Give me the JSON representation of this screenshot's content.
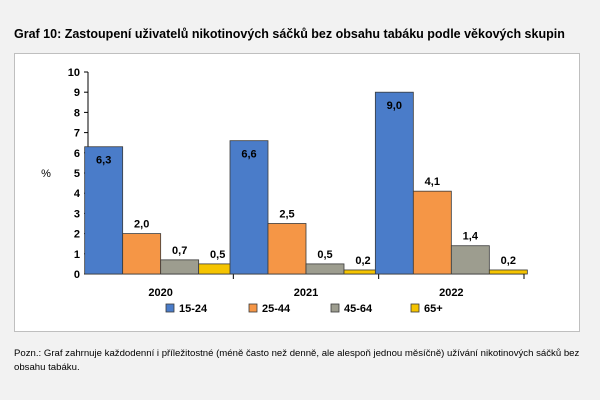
{
  "title": "Graf 10: Zastoupení uživatelů nikotinových sáčků bez obsahu tabáku podle věkových skupin",
  "note": "Pozn.: Graf zahrnuje každodenní i příležitostné (méně často než denně, ale alespoň jednou měsíčně) užívání nikotinových sáčků bez obsahu tabáku.",
  "chart_data": {
    "type": "bar",
    "title": "",
    "xlabel": "",
    "ylabel": "%",
    "ylim": [
      0,
      10
    ],
    "yticks": [
      "0",
      "1",
      "2",
      "3",
      "4",
      "5",
      "6",
      "7",
      "8",
      "9",
      "10"
    ],
    "categories": [
      "2020",
      "2021",
      "2022"
    ],
    "grid": false,
    "legend_position": "bottom",
    "series": [
      {
        "name": "15-24",
        "color": "#4a7cc9",
        "values": [
          6.3,
          6.6,
          9.0
        ],
        "labels": [
          "6,3",
          "6,6",
          "9,0"
        ]
      },
      {
        "name": "25-44",
        "color": "#f59646",
        "values": [
          2.0,
          2.5,
          4.1
        ],
        "labels": [
          "2,0",
          "2,5",
          "4,1"
        ]
      },
      {
        "name": "45-64",
        "color": "#9d9d8f",
        "values": [
          0.7,
          0.5,
          1.4
        ],
        "labels": [
          "0,7",
          "0,5",
          "1,4"
        ]
      },
      {
        "name": "65+",
        "color": "#f5c400",
        "values": [
          0.5,
          0.2,
          0.2
        ],
        "labels": [
          "0,5",
          "0,2",
          "0,2"
        ]
      }
    ]
  }
}
